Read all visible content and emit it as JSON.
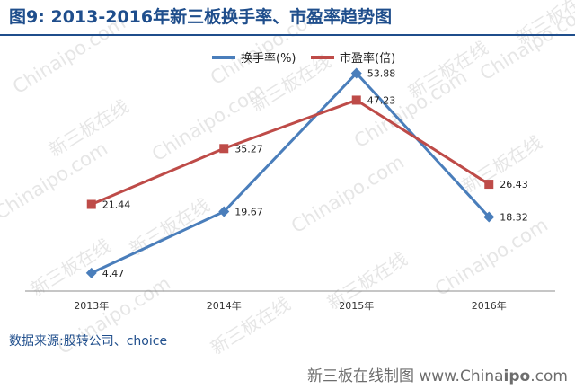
{
  "title_prefix": "图9",
  "title_sep": ":",
  "title_text": "2013-2016年新三板换手率、市盈率趋势图",
  "source": "数据来源:股转公司、choice",
  "brand_prefix": "新三板在线制图 www.China",
  "brand_bold": "ipo",
  "brand_suffix": ".com",
  "watermark_en": "Chinaipo.com",
  "watermark_cn": "新三板在线",
  "colors": {
    "turnover": "#4a7ebb",
    "pe": "#be4b48",
    "title": "#1f4e8c"
  },
  "chart_data": {
    "type": "line",
    "categories": [
      "2013年",
      "2014年",
      "2015年",
      "2016年"
    ],
    "ylim": [
      0,
      60
    ],
    "grid": false,
    "legend": "top-center",
    "series": [
      {
        "name": "换手率(%)",
        "marker": "diamond",
        "values": [
          4.47,
          19.67,
          53.88,
          18.32
        ]
      },
      {
        "name": "市盈率(倍)",
        "marker": "square",
        "values": [
          21.44,
          35.27,
          47.23,
          26.43
        ]
      }
    ]
  }
}
